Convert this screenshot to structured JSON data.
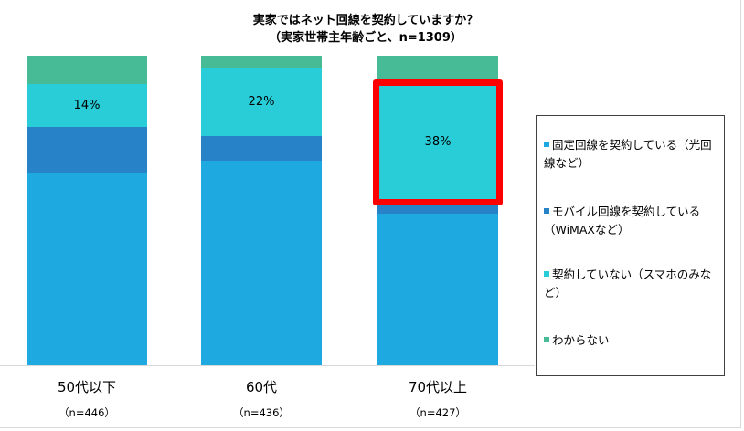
{
  "chart_data": {
    "type": "bar",
    "stacked": true,
    "percent_stacked": true,
    "title": "実家ではネット回線を契約していますか？",
    "subtitle": "（実家世帯主年齢ごと、n=1309）",
    "categories": [
      "50代以下",
      "60代",
      "70代以上"
    ],
    "category_n": [
      "（n=446）",
      "（n=436）",
      "（n=427）"
    ],
    "series": [
      {
        "name": "固定回線を契約している（光回線など）",
        "color": "#1eaae1",
        "values": [
          62,
          66,
          49
        ]
      },
      {
        "name": "モバイル回線を契約している（WiMAXなど）",
        "color": "#2882c8",
        "values": [
          15,
          8,
          4
        ]
      },
      {
        "name": "契約していない（スマホのみなど）",
        "color": "#28cdd7",
        "values": [
          14,
          22,
          38
        ]
      },
      {
        "name": "わからない",
        "color": "#46bb96",
        "values": [
          9,
          4,
          9
        ]
      }
    ],
    "data_labels": [
      {
        "category": "50代以下",
        "series": "契約していない（スマホのみなど）",
        "text": "14%"
      },
      {
        "category": "60代",
        "series": "契約していない（スマホのみなど）",
        "text": "22%"
      },
      {
        "category": "70代以上",
        "series": "契約していない（スマホのみなど）",
        "text": "38%"
      }
    ],
    "annotations": [
      {
        "type": "highlight-box",
        "color": "#ff0000",
        "target": "70代以上 / 契約していない（スマホのみなど）"
      }
    ],
    "xlabel": "",
    "ylabel": "",
    "ylim": [
      0,
      100
    ],
    "grid": false,
    "legend_position": "right"
  },
  "title": {
    "line1": "実家ではネット回線を契約していますか？",
    "line2": "（実家世帯主年齢ごと、n=1309）"
  },
  "legend": {
    "items": [
      {
        "label": "固定回線を契約している（光回線など）",
        "color": "#1eaae1"
      },
      {
        "label": "モバイル回線を契約している（WiMAXなど）",
        "color": "#2882c8"
      },
      {
        "label": "契約していない（スマホのみなど）",
        "color": "#28cdd7"
      },
      {
        "label": "わからない",
        "color": "#46bb96"
      }
    ]
  },
  "colors": {
    "highlight": "#ff0000"
  }
}
